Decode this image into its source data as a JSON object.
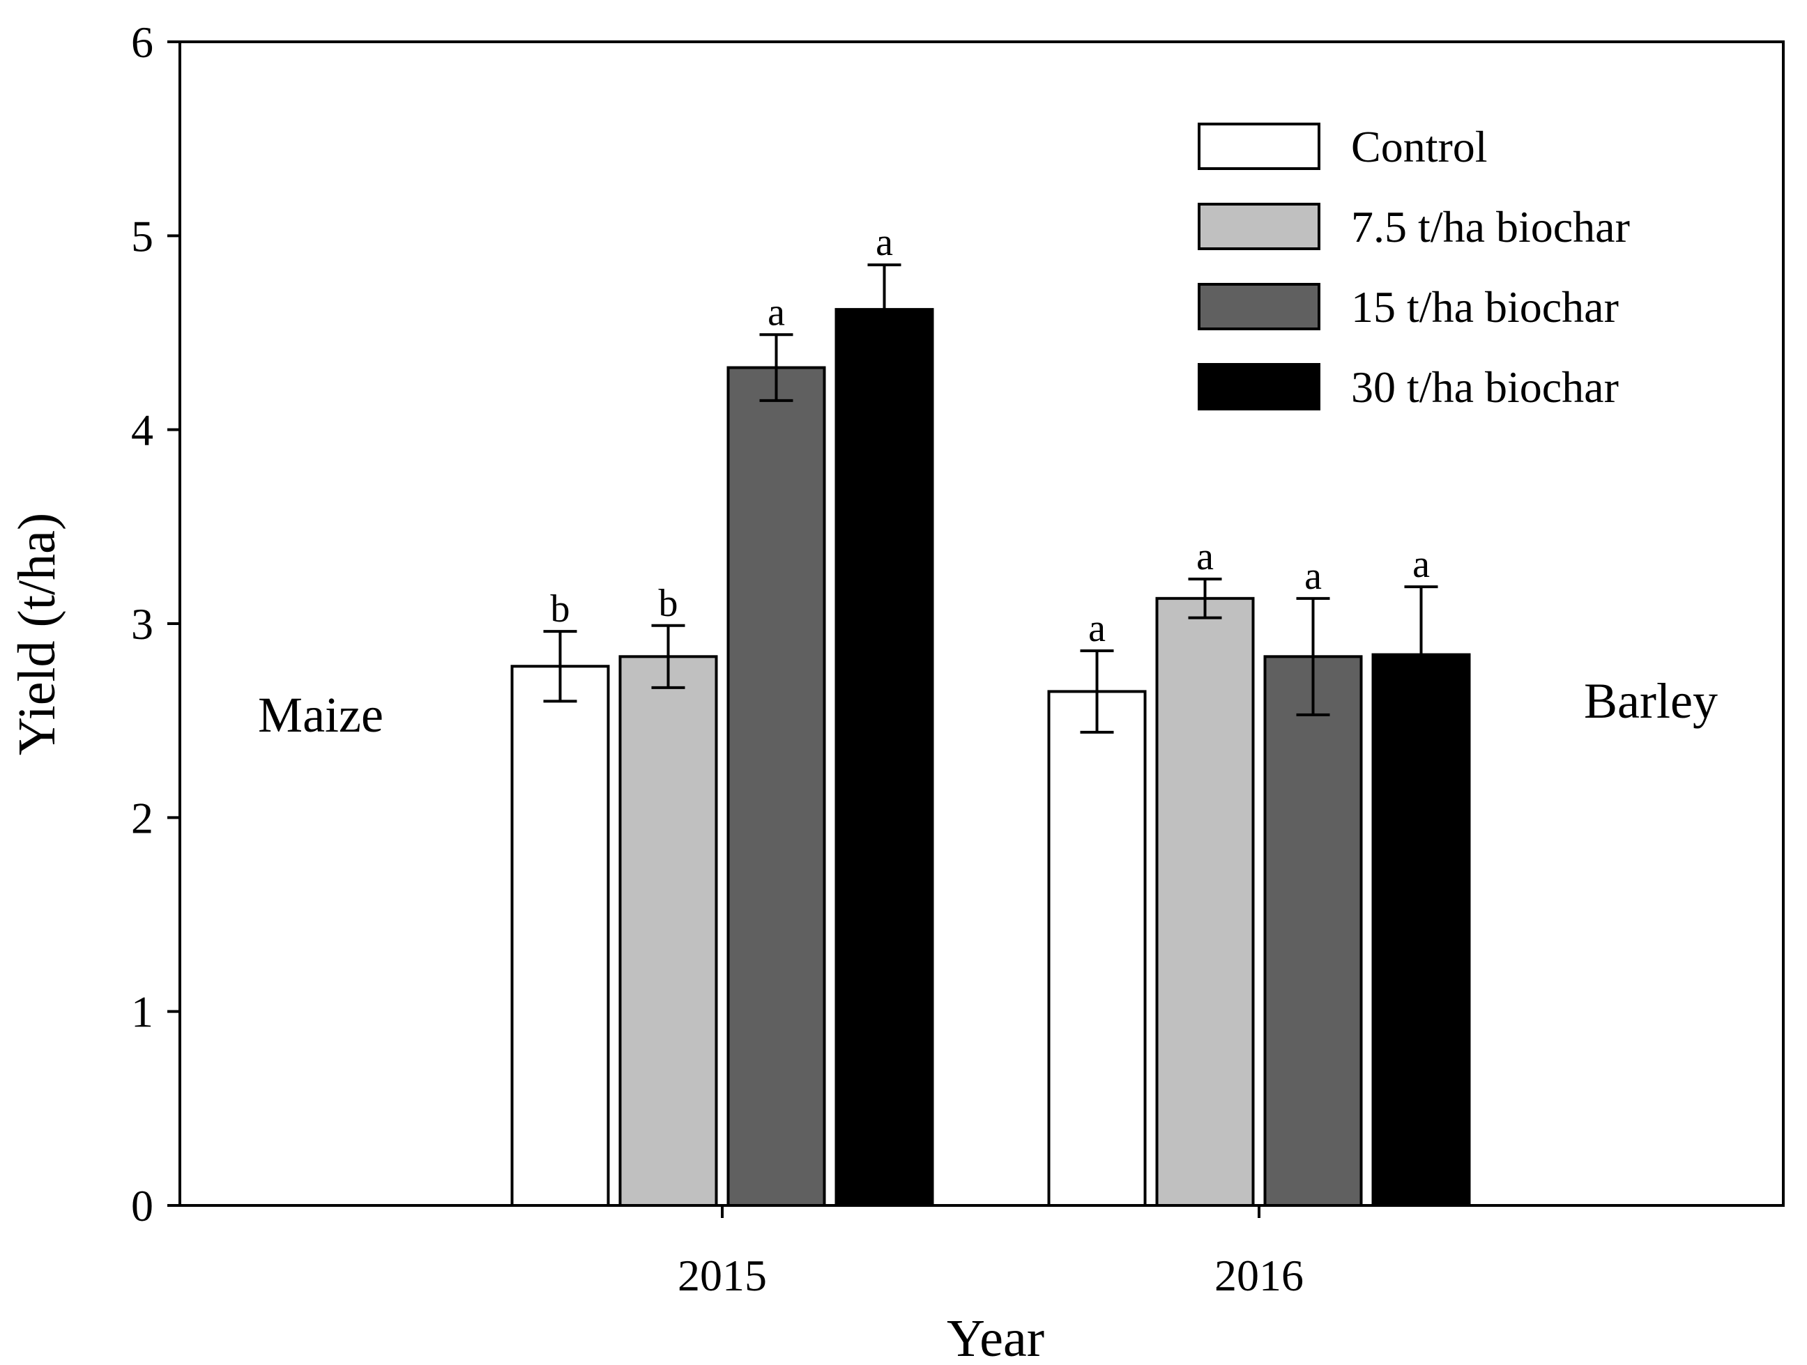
{
  "chart_data": {
    "type": "bar",
    "title": "",
    "xlabel": "Year",
    "ylabel": "Yield (t/ha)",
    "ylim": [
      0,
      6
    ],
    "yticks": [
      0,
      1,
      2,
      3,
      4,
      5,
      6
    ],
    "categories": [
      "2015",
      "2016"
    ],
    "category_notes": [
      "Maize",
      "Barley"
    ],
    "grid": false,
    "legend_position": "top-right",
    "series": [
      {
        "name": "Control",
        "color": "#ffffff",
        "values": [
          2.78,
          2.65
        ],
        "errors": [
          0.18,
          0.21
        ],
        "significance": [
          "b",
          "a"
        ]
      },
      {
        "name": "7.5 t/ha biochar",
        "color": "#c0c0c0",
        "values": [
          2.83,
          3.13
        ],
        "errors": [
          0.16,
          0.1
        ],
        "significance": [
          "b",
          "a"
        ]
      },
      {
        "name": "15 t/ha biochar",
        "color": "#606060",
        "values": [
          4.32,
          2.83
        ],
        "errors": [
          0.17,
          0.3
        ],
        "significance": [
          "a",
          "a"
        ]
      },
      {
        "name": "30 t/ha biochar",
        "color": "#000000",
        "values": [
          4.62,
          2.84
        ],
        "errors": [
          0.23,
          0.35
        ],
        "significance": [
          "a",
          "a"
        ]
      }
    ]
  }
}
